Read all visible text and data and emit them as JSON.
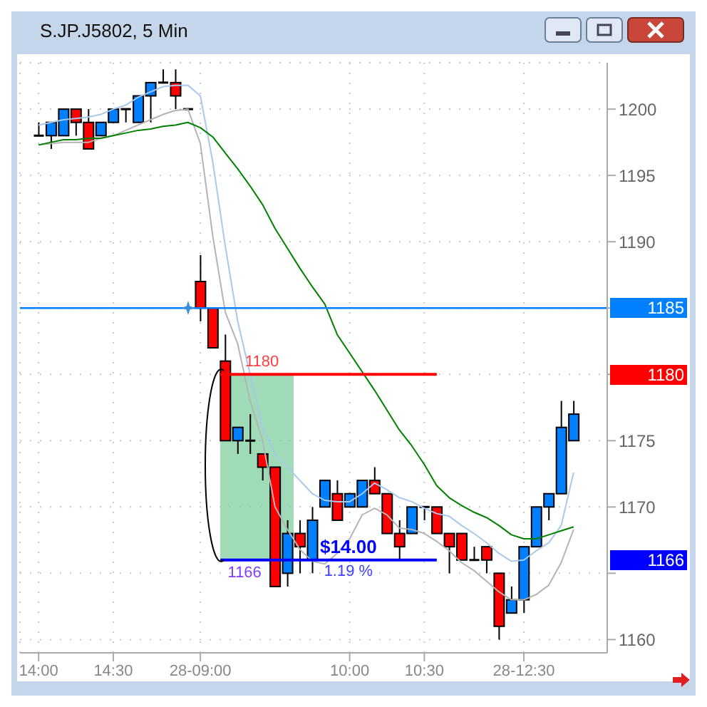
{
  "chart_data": {
    "type": "candlestick",
    "title": "S.JP.J5802, 5 Min",
    "categories": [
      "14:00",
      null,
      null,
      null,
      null,
      null,
      "14:30",
      null,
      null,
      null,
      null,
      null,
      null,
      "28-09:00",
      null,
      null,
      null,
      null,
      null,
      null,
      null,
      null,
      null,
      null,
      null,
      "10:00",
      null,
      null,
      null,
      null,
      null,
      "10:30",
      null,
      null,
      null,
      null,
      null,
      null,
      null,
      "28-12:30",
      null,
      null,
      null,
      null
    ],
    "ohlc": [
      [
        1198,
        1199,
        1198,
        1198
      ],
      [
        1198,
        1199,
        1197,
        1199
      ],
      [
        1198,
        1200,
        1198,
        1200
      ],
      [
        1200,
        1200,
        1198,
        1199
      ],
      [
        1199,
        1200,
        1197,
        1197
      ],
      [
        1198,
        1199,
        1198,
        1199
      ],
      [
        1199,
        1200,
        1199,
        1200
      ],
      [
        1200,
        1200,
        1199,
        1200
      ],
      [
        1199,
        1201,
        1199,
        1201
      ],
      [
        1201,
        1202,
        1199,
        1202
      ],
      [
        1202,
        1203,
        1202,
        1202
      ],
      [
        1202,
        1203,
        1200,
        1201
      ],
      [
        1200,
        1200,
        1200,
        1200
      ],
      [
        1187,
        1189,
        1184,
        1185
      ],
      [
        1185,
        1185,
        1182,
        1182
      ],
      [
        1181,
        1183,
        1175,
        1175
      ],
      [
        1175,
        1176,
        1174,
        1176
      ],
      [
        1175,
        1177,
        1174,
        1175
      ],
      [
        1174,
        1174,
        1172,
        1173
      ],
      [
        1173,
        1173,
        1164,
        1164
      ],
      [
        1165,
        1169,
        1164,
        1168
      ],
      [
        1168,
        1169,
        1165,
        1167
      ],
      [
        1166,
        1170,
        1165,
        1169
      ],
      [
        1170,
        1172,
        1170,
        1172
      ],
      [
        1171,
        1172,
        1169,
        1169
      ],
      [
        1170,
        1171,
        1170,
        1171
      ],
      [
        1170,
        1172,
        1170,
        1172
      ],
      [
        1172,
        1173,
        1171,
        1171
      ],
      [
        1171,
        1171,
        1168,
        1168
      ],
      [
        1168,
        1169,
        1166,
        1167
      ],
      [
        1168,
        1170,
        1168,
        1170
      ],
      [
        1170,
        1170,
        1169,
        1170
      ],
      [
        1170,
        1170,
        1168,
        1168
      ],
      [
        1168,
        1168,
        1165,
        1167
      ],
      [
        1168,
        1168,
        1166,
        1166
      ],
      [
        1166,
        1167,
        1166,
        1166
      ],
      [
        1167,
        1167,
        1165,
        1166
      ],
      [
        1165,
        1165,
        1160,
        1161
      ],
      [
        1162,
        1164,
        1162,
        1163
      ],
      [
        1163,
        1167,
        1162,
        1167
      ],
      [
        1167,
        1170,
        1167,
        1170
      ],
      [
        1170,
        1171,
        1169,
        1171
      ],
      [
        1171,
        1178,
        1171,
        1176
      ],
      [
        1175,
        1178,
        1175,
        1177
      ]
    ],
    "colors": [
      "#000000",
      "#0080ff",
      "#0080ff",
      "#ff0000",
      "#ff0000",
      "#0080ff",
      "#0080ff",
      "#000000",
      "#0080ff",
      "#0080ff",
      "#000000",
      "#ff0000",
      "#000000",
      "#ff0000",
      "#ff0000",
      "#ff0000",
      "#0080ff",
      "#000000",
      "#ff0000",
      "#ff0000",
      "#0080ff",
      "#ff0000",
      "#0080ff",
      "#0080ff",
      "#ff0000",
      "#0080ff",
      "#0080ff",
      "#ff0000",
      "#ff0000",
      "#ff0000",
      "#0080ff",
      "#000000",
      "#ff0000",
      "#ff0000",
      "#ff0000",
      "#000000",
      "#ff0000",
      "#ff0000",
      "#0080ff",
      "#0080ff",
      "#0080ff",
      "#0080ff",
      "#0080ff",
      "#0080ff"
    ],
    "series": [
      {
        "type": "line",
        "color": "#a8c8ee",
        "values": [
          1198.8,
          1199,
          1199.2,
          1199.3,
          1199.4,
          1199.6,
          1200,
          1200.3,
          1200.9,
          1201.3,
          1201.7,
          1201.8,
          1201.8,
          1201,
          1196,
          1189.7,
          1184,
          1180,
          1176,
          1174,
          1173,
          1172,
          1171,
          1170.5,
          1170.4,
          1170.4,
          1171,
          1171.8,
          1171.3,
          1170.7,
          1170.4,
          1169.9,
          1169.5,
          1169.3,
          1168.6,
          1168,
          1167.3,
          1166.5,
          1165.9,
          1166,
          1166.7,
          1167.3,
          1168.6,
          1172.6
        ]
      },
      {
        "type": "line",
        "color": "#b4b4b4",
        "values": [
          1197.3,
          1197.4,
          1197.5,
          1197.5,
          1197.5,
          1197.8,
          1198,
          1198.4,
          1198.8,
          1199.2,
          1199.6,
          1199.9,
          1200,
          1197.4,
          1190.4,
          1184.7,
          1182.3,
          1178,
          1175,
          1170,
          1168.3,
          1166.8,
          1165.9,
          1165.7,
          1166.5,
          1167.6,
          1169.4,
          1169.9,
          1169.4,
          1168.4,
          1168.3,
          1168,
          1167.4,
          1166.7,
          1165.8,
          1165.2,
          1164.4,
          1163.6,
          1163,
          1163,
          1163.4,
          1164.1,
          1165.8,
          1168.3
        ]
      },
      {
        "type": "line",
        "color": "#008000",
        "values": [
          1197.3,
          1197.5,
          1197.7,
          1197.7,
          1197.8,
          1197.8,
          1198,
          1198.2,
          1198.4,
          1198.5,
          1198.7,
          1198.8,
          1199,
          1198.6,
          1197.9,
          1196.7,
          1195.5,
          1194.2,
          1192.8,
          1191,
          1189.5,
          1188,
          1186.6,
          1185.3,
          1183,
          1181.6,
          1180.2,
          1178.8,
          1177.3,
          1175.8,
          1174.6,
          1173.2,
          1171.6,
          1170.7,
          1170.1,
          1169.6,
          1169.2,
          1168.6,
          1167.9,
          1167.6,
          1167.6,
          1167.9,
          1168.2,
          1168.5
        ]
      }
    ],
    "ylim": [
      1159,
      1203.5
    ],
    "yticks": [
      1160,
      {
        "value": 1165,
        "label": null
      },
      1170,
      1175,
      {
        "value": 1180,
        "label": null
      },
      {
        "value": 1185,
        "label": null
      },
      1190,
      1195,
      1200
    ],
    "grid": true,
    "marker": "none",
    "ref_lines": [
      {
        "axis": "y",
        "value": 1185,
        "label": "1185",
        "color": "#0080ff"
      },
      {
        "axis": "y",
        "value": 1180,
        "label": "1180",
        "color": "#ff0000"
      },
      {
        "axis": "y",
        "value": 1166,
        "label": "1166",
        "color": "#0000ff"
      }
    ],
    "bands": [
      {
        "axis": "y",
        "from": 1166,
        "to": 1180,
        "label": null,
        "color": "#7fcf9f"
      }
    ],
    "annotations": [
      "$14.00",
      "1.19 %"
    ]
  }
}
